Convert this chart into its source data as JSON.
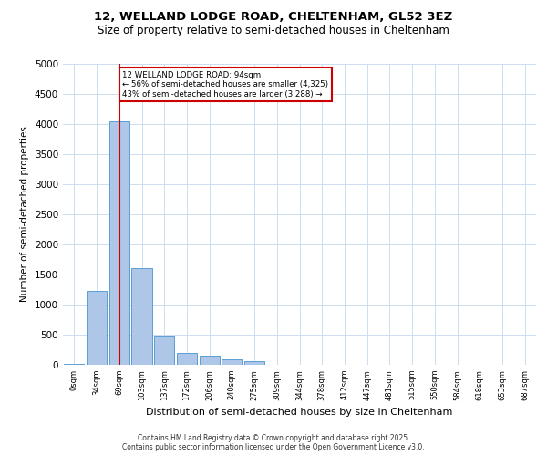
{
  "title_line1": "12, WELLAND LODGE ROAD, CHELTENHAM, GL52 3EZ",
  "title_line2": "Size of property relative to semi-detached houses in Cheltenham",
  "xlabel": "Distribution of semi-detached houses by size in Cheltenham",
  "ylabel": "Number of semi-detached properties",
  "footer_line1": "Contains HM Land Registry data © Crown copyright and database right 2025.",
  "footer_line2": "Contains public sector information licensed under the Open Government Licence v3.0.",
  "bin_labels": [
    "0sqm",
    "34sqm",
    "69sqm",
    "103sqm",
    "137sqm",
    "172sqm",
    "206sqm",
    "240sqm",
    "275sqm",
    "309sqm",
    "344sqm",
    "378sqm",
    "412sqm",
    "447sqm",
    "481sqm",
    "515sqm",
    "550sqm",
    "584sqm",
    "618sqm",
    "653sqm",
    "687sqm"
  ],
  "bar_values": [
    10,
    1230,
    4050,
    1600,
    490,
    200,
    145,
    85,
    60,
    0,
    0,
    0,
    0,
    0,
    0,
    0,
    0,
    0,
    0,
    0,
    0
  ],
  "bar_color": "#aec6e8",
  "bar_edge_color": "#5a9fd4",
  "property_size": 94,
  "property_bin_index": 2,
  "vline_color": "#cc0000",
  "annotation_text_line1": "12 WELLAND LODGE ROAD: 94sqm",
  "annotation_text_line2": "← 56% of semi-detached houses are smaller (4,325)",
  "annotation_text_line3": "43% of semi-detached houses are larger (3,288) →",
  "ylim": [
    0,
    5000
  ],
  "yticks": [
    0,
    500,
    1000,
    1500,
    2000,
    2500,
    3000,
    3500,
    4000,
    4500,
    5000
  ],
  "background_color": "#ffffff",
  "grid_color": "#ccddee"
}
